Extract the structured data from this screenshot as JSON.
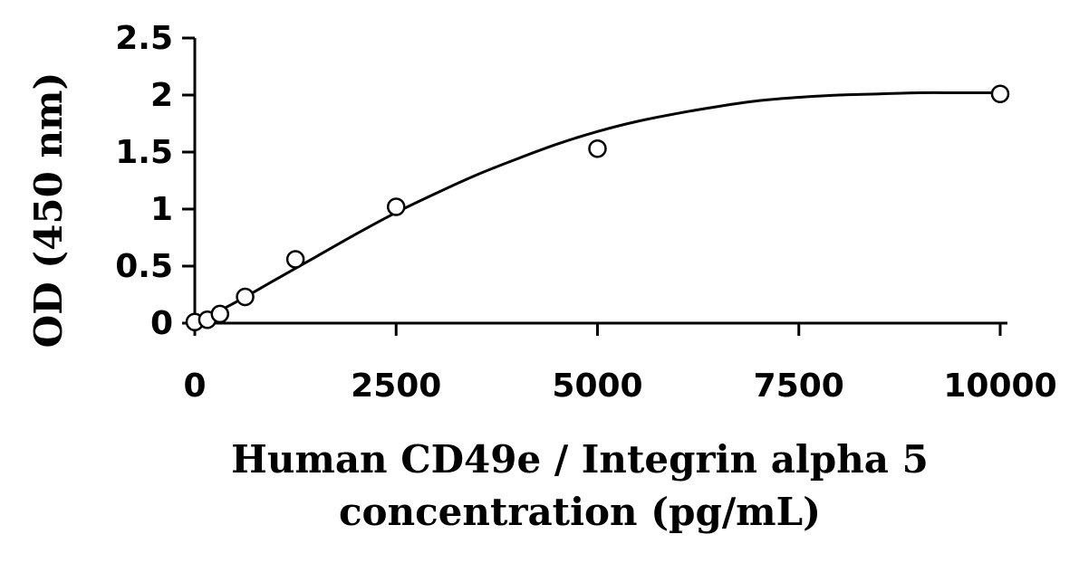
{
  "chart_data": {
    "type": "scatter",
    "xlabel_lines": [
      "Human CD49e / Integrin alpha 5",
      "concentration (pg/mL)"
    ],
    "ylabel": "OD (450 nm)",
    "xlim": [
      0,
      10000
    ],
    "ylim": [
      0,
      2.5
    ],
    "x_ticks": [
      0,
      2500,
      5000,
      7500,
      10000
    ],
    "x_tick_labels": [
      "0",
      "2500",
      "5000",
      "7500",
      "10000"
    ],
    "y_ticks": [
      0,
      0.5,
      1,
      1.5,
      2,
      2.5
    ],
    "y_tick_labels": [
      "0",
      "0.5",
      "1",
      "1.5",
      "2",
      "2.5"
    ],
    "grid": false,
    "marker": "open-circle",
    "trendline": "smooth",
    "series": [
      {
        "x": [
          0,
          156.25,
          312.5,
          625,
          1250,
          2500,
          5000,
          10000
        ],
        "y": [
          0.01,
          0.03,
          0.08,
          0.23,
          0.56,
          1.02,
          1.53,
          2.01
        ]
      }
    ],
    "fit_curve": {
      "x": [
        0,
        500,
        1000,
        1500,
        2000,
        2500,
        3000,
        3500,
        4000,
        4500,
        5000,
        5500,
        6000,
        6500,
        7000,
        7500,
        8000,
        8500,
        9000,
        9500,
        10000
      ],
      "y": [
        0.0,
        0.18,
        0.38,
        0.58,
        0.78,
        0.97,
        1.14,
        1.3,
        1.44,
        1.57,
        1.68,
        1.77,
        1.84,
        1.9,
        1.95,
        1.98,
        2.0,
        2.01,
        2.02,
        2.02,
        2.02
      ]
    }
  }
}
